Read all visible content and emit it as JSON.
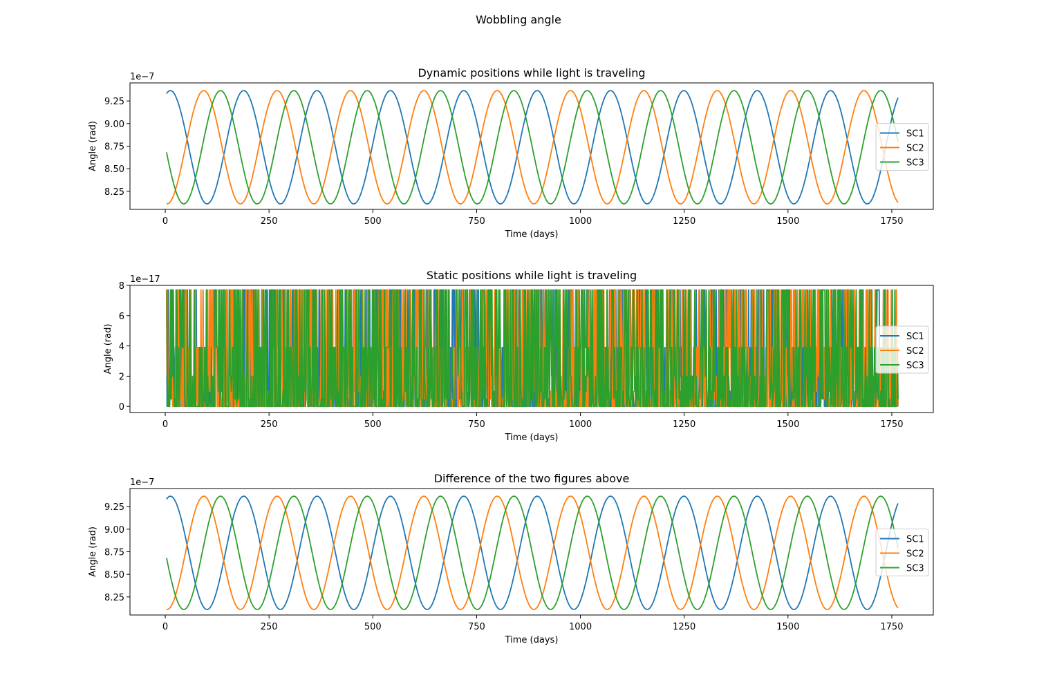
{
  "figure": {
    "suptitle": "Wobbling angle"
  },
  "colors": {
    "SC1": "#1f77b4",
    "SC2": "#ff7f0e",
    "SC3": "#2ca02c"
  },
  "chart_data": [
    {
      "type": "line",
      "title": "Dynamic positions while light is traveling",
      "xlabel": "Time (days)",
      "ylabel": "Angle (rad)",
      "offset_label": "1e−7",
      "xlim": [
        -85,
        1850
      ],
      "ylim": [
        8.05,
        9.45
      ],
      "xticks": [
        0,
        250,
        500,
        750,
        1000,
        1250,
        1500,
        1750
      ],
      "xtick_labels": [
        "0",
        "250",
        "500",
        "750",
        "1000",
        "1250",
        "1500",
        "1750"
      ],
      "yticks": [
        8.25,
        8.5,
        8.75,
        9.0,
        9.25
      ],
      "ytick_labels": [
        "8.25",
        "8.50",
        "8.75",
        "9.00",
        "9.25"
      ],
      "legend": "center-right",
      "grid": false,
      "series": [
        {
          "name": "SC1",
          "form": "sinusoid",
          "x_range": [
            3,
            1765
          ],
          "mean": 8.738,
          "amplitude": 0.627,
          "period_days": 176.7,
          "phase_at_x0": 1.24
        },
        {
          "name": "SC2",
          "form": "sinusoid",
          "x_range": [
            3,
            1765
          ],
          "mean": 8.738,
          "amplitude": 0.627,
          "period_days": 176.7,
          "phase_at_x0": -1.62
        },
        {
          "name": "SC3",
          "form": "sinusoid",
          "x_range": [
            3,
            1765
          ],
          "mean": 8.738,
          "amplitude": 0.627,
          "period_days": 176.7,
          "phase_at_x0": 3.23
        }
      ]
    },
    {
      "type": "line",
      "title": "Static positions while light is traveling",
      "xlabel": "Time (days)",
      "ylabel": "Angle (rad)",
      "offset_label": "1e−17",
      "xlim": [
        -85,
        1850
      ],
      "ylim": [
        -0.4,
        8.0
      ],
      "xticks": [
        0,
        250,
        500,
        750,
        1000,
        1250,
        1500,
        1750
      ],
      "xtick_labels": [
        "0",
        "250",
        "500",
        "750",
        "1000",
        "1250",
        "1500",
        "1750"
      ],
      "yticks": [
        0,
        2,
        4,
        6,
        8
      ],
      "ytick_labels": [
        "0",
        "2",
        "4",
        "6",
        "8"
      ],
      "legend": "center-right",
      "grid": false,
      "series": [
        {
          "name": "SC1",
          "form": "noise",
          "x_range": [
            3,
            1765
          ],
          "levels": [
            0,
            0.5,
            1,
            2,
            3.9,
            7.7
          ]
        },
        {
          "name": "SC2",
          "form": "noise",
          "x_range": [
            3,
            1765
          ],
          "levels": [
            0,
            0.5,
            1,
            2,
            3.9,
            7.7
          ]
        },
        {
          "name": "SC3",
          "form": "noise",
          "x_range": [
            3,
            1765
          ],
          "levels": [
            0,
            0.5,
            1,
            2,
            3.9,
            7.7
          ]
        }
      ]
    },
    {
      "type": "line",
      "title": "Difference of the two figures above",
      "xlabel": "Time (days)",
      "ylabel": "Angle (rad)",
      "offset_label": "1e−7",
      "xlim": [
        -85,
        1850
      ],
      "ylim": [
        8.05,
        9.45
      ],
      "xticks": [
        0,
        250,
        500,
        750,
        1000,
        1250,
        1500,
        1750
      ],
      "xtick_labels": [
        "0",
        "250",
        "500",
        "750",
        "1000",
        "1250",
        "1500",
        "1750"
      ],
      "yticks": [
        8.25,
        8.5,
        8.75,
        9.0,
        9.25
      ],
      "ytick_labels": [
        "8.25",
        "8.50",
        "8.75",
        "9.00",
        "9.25"
      ],
      "legend": "center-right",
      "grid": false,
      "series": [
        {
          "name": "SC1",
          "form": "sinusoid",
          "x_range": [
            3,
            1765
          ],
          "mean": 8.738,
          "amplitude": 0.627,
          "period_days": 176.7,
          "phase_at_x0": 1.24
        },
        {
          "name": "SC2",
          "form": "sinusoid",
          "x_range": [
            3,
            1765
          ],
          "mean": 8.738,
          "amplitude": 0.627,
          "period_days": 176.7,
          "phase_at_x0": -1.62
        },
        {
          "name": "SC3",
          "form": "sinusoid",
          "x_range": [
            3,
            1765
          ],
          "mean": 8.738,
          "amplitude": 0.627,
          "period_days": 176.7,
          "phase_at_x0": 3.23
        }
      ]
    }
  ]
}
